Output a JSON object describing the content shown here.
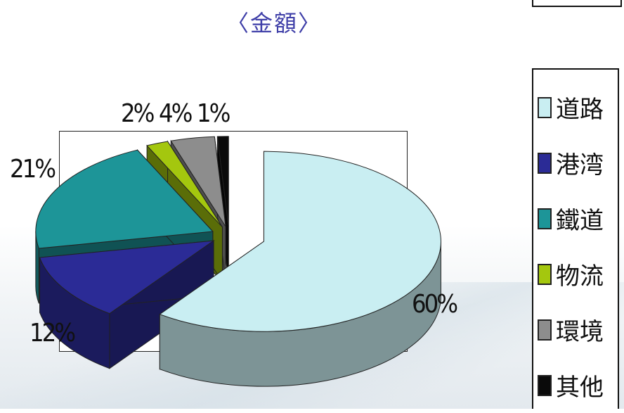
{
  "chart_data": {
    "type": "pie",
    "style": "3d-exploded",
    "title": "〈金額〉",
    "categories": [
      "道路",
      "港湾",
      "鐵道",
      "物流",
      "環境",
      "其他"
    ],
    "values": [
      60,
      12,
      21,
      2,
      4,
      1
    ],
    "value_labels": [
      "60%",
      "12%",
      "21%",
      "2%",
      "4%",
      "1%"
    ],
    "colors": [
      "#c9eef2",
      "#2b2b96",
      "#1d9598",
      "#a4c70e",
      "#8d8d8d",
      "#0a0a0a"
    ],
    "legend_position": "right"
  }
}
